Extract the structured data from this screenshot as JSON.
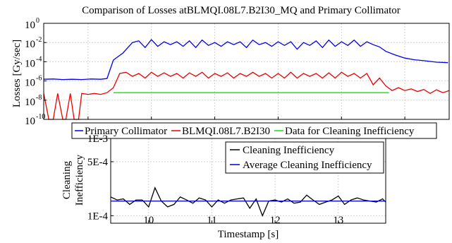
{
  "chart_data": [
    {
      "type": "line",
      "title": "Comparison of Losses atBLMQI.08L7.B2I30_MQ and Primary Collimator",
      "ylabel": "Losses [Gy/sec]",
      "xlabel": "",
      "yscale": "log",
      "xlim": [
        8.3,
        14.7
      ],
      "ylim": [
        1e-10,
        1
      ],
      "grid": true,
      "legend_position": "bottom",
      "xticks": [
        "9",
        "10",
        "11",
        "12",
        "13",
        "14"
      ],
      "yticks": [
        {
          "base": "10",
          "exp": "0"
        },
        {
          "base": "10",
          "exp": "-2"
        },
        {
          "base": "10",
          "exp": "-4"
        },
        {
          "base": "10",
          "exp": "-6"
        },
        {
          "base": "10",
          "exp": "-8"
        },
        {
          "base": "10",
          "exp": "-10"
        }
      ],
      "series": [
        {
          "name": "Primary Collimator",
          "color": "#0000ee",
          "x": [
            8.3,
            8.45,
            8.6,
            8.75,
            8.9,
            9.05,
            9.2,
            9.3,
            9.4,
            9.55,
            9.7,
            9.8,
            9.9,
            10.0,
            10.1,
            10.2,
            10.3,
            10.4,
            10.5,
            10.6,
            10.7,
            10.8,
            10.9,
            11.0,
            11.1,
            11.2,
            11.3,
            11.4,
            11.5,
            11.6,
            11.7,
            11.8,
            11.9,
            12.0,
            12.1,
            12.2,
            12.3,
            12.4,
            12.5,
            12.6,
            12.7,
            12.8,
            12.9,
            13.0,
            13.1,
            13.2,
            13.3,
            13.4,
            13.5,
            13.6,
            13.7,
            13.85,
            14.0,
            14.15,
            14.3,
            14.5,
            14.68
          ],
          "y": [
            1.5e-06,
            1.6e-06,
            1.4e-06,
            1.5e-06,
            1.4e-06,
            1.6e-06,
            1.5e-06,
            1.8e-06,
            0.00015,
            0.0008,
            0.01,
            0.015,
            0.003,
            0.02,
            0.004,
            0.012,
            0.006,
            0.012,
            0.004,
            0.015,
            0.003,
            0.018,
            0.005,
            0.01,
            0.004,
            0.012,
            0.006,
            0.012,
            0.003,
            0.018,
            0.006,
            0.01,
            0.004,
            0.012,
            0.005,
            0.012,
            0.002,
            0.01,
            0.005,
            0.015,
            0.003,
            0.018,
            0.004,
            0.012,
            0.005,
            0.018,
            0.004,
            0.012,
            0.006,
            0.0035,
            0.0012,
            0.0005,
            0.00024,
            0.00016,
            0.00013,
            9e-05,
            8e-05
          ]
        },
        {
          "name": "BLMQI.08L7.B2I30",
          "color": "#ee0000",
          "x": [
            8.3,
            8.38,
            8.45,
            8.52,
            8.6,
            8.65,
            8.72,
            8.78,
            8.85,
            8.9,
            9.0,
            9.1,
            9.2,
            9.3,
            9.4,
            9.5,
            9.6,
            9.7,
            9.8,
            9.9,
            10.0,
            10.1,
            10.2,
            10.3,
            10.4,
            10.5,
            10.6,
            10.7,
            10.8,
            10.9,
            11.0,
            11.1,
            11.2,
            11.3,
            11.4,
            11.5,
            11.6,
            11.7,
            11.8,
            11.9,
            12.0,
            12.1,
            12.2,
            12.3,
            12.4,
            12.5,
            12.6,
            12.7,
            12.8,
            12.9,
            13.0,
            13.1,
            13.2,
            13.3,
            13.4,
            13.5,
            13.6,
            13.7,
            13.8,
            13.9,
            14.0,
            14.1,
            14.2,
            14.3,
            14.4,
            14.5,
            14.6,
            14.7
          ],
          "y": [
            5e-08,
            1e-10,
            1e-10,
            5e-08,
            1e-10,
            1e-10,
            5e-08,
            1e-10,
            1e-10,
            5e-08,
            4e-08,
            5e-08,
            4e-08,
            6e-08,
            2e-07,
            6e-06,
            8e-06,
            3e-06,
            6e-06,
            2e-06,
            8e-06,
            3e-06,
            7e-06,
            3e-06,
            6e-06,
            2e-06,
            7e-06,
            3e-06,
            8e-06,
            2e-06,
            6e-06,
            3e-06,
            7e-06,
            2e-06,
            6e-06,
            3e-06,
            8e-06,
            3e-06,
            6e-06,
            2e-06,
            6e-06,
            2e-06,
            8e-06,
            2e-06,
            6e-06,
            3e-06,
            6e-06,
            2e-06,
            7e-06,
            2e-06,
            8e-06,
            3e-06,
            6e-06,
            2e-06,
            6e-06,
            4e-07,
            2e-06,
            3e-07,
            1e-07,
            2e-07,
            1e-07,
            1.5e-07,
            8e-08,
            1.3e-07,
            5e-08,
            1.2e-07,
            6e-08,
            1e-07
          ]
        },
        {
          "name": "Data for Cleaning Inefficiency",
          "color": "#00ee00",
          "x": [
            9.4,
            13.75
          ],
          "y": [
            6e-08,
            6e-08
          ]
        }
      ]
    },
    {
      "type": "line",
      "title": "",
      "xlabel": "Timestamp [s]",
      "ylabel_lines": [
        "Cleaning",
        "Inefficiency"
      ],
      "yscale": "log",
      "xlim": [
        9.4,
        13.75
      ],
      "ylim": [
        8e-05,
        0.001
      ],
      "grid": true,
      "legend_position": "top-right",
      "xticks": [
        "10",
        "11",
        "12",
        "13"
      ],
      "yticks": [
        {
          "label": "1E-3",
          "value": 0.001
        },
        {
          "label": "5E-4",
          "value": 0.0005
        },
        {
          "label": "1E-4",
          "value": 0.0001
        }
      ],
      "series": [
        {
          "name": "Cleaning Inefficiency",
          "color": "#000000",
          "x": [
            9.4,
            9.5,
            9.6,
            9.7,
            9.8,
            9.9,
            10.0,
            10.1,
            10.2,
            10.3,
            10.4,
            10.5,
            10.6,
            10.7,
            10.8,
            10.9,
            11.0,
            11.1,
            11.2,
            11.3,
            11.4,
            11.5,
            11.6,
            11.7,
            11.8,
            11.9,
            12.0,
            12.1,
            12.2,
            12.3,
            12.4,
            12.5,
            12.6,
            12.7,
            12.8,
            12.9,
            13.0,
            13.1,
            13.2,
            13.3,
            13.4,
            13.5,
            13.6,
            13.7,
            13.75
          ],
          "y": [
            0.000175,
            0.00016,
            0.000165,
            0.00014,
            0.00016,
            0.00016,
            0.00013,
            0.00023,
            0.000155,
            0.00013,
            0.00014,
            0.000175,
            0.00016,
            0.000145,
            0.00017,
            0.00016,
            0.00013,
            0.00016,
            0.000145,
            0.00016,
            0.000165,
            0.00017,
            0.000125,
            0.000165,
            0.0001,
            0.000155,
            0.00016,
            0.00015,
            0.000165,
            0.000145,
            0.00015,
            0.000185,
            0.00016,
            0.00014,
            0.00015,
            0.00016,
            0.00018,
            0.00014,
            0.00016,
            0.00017,
            0.00016,
            0.000155,
            0.00015,
            0.000165,
            0.00015
          ]
        },
        {
          "name": "Average Cleaning Inefficiency",
          "color": "#0000cc",
          "x": [
            9.4,
            13.75
          ],
          "y": [
            0.000155,
            0.000155
          ]
        }
      ]
    }
  ]
}
